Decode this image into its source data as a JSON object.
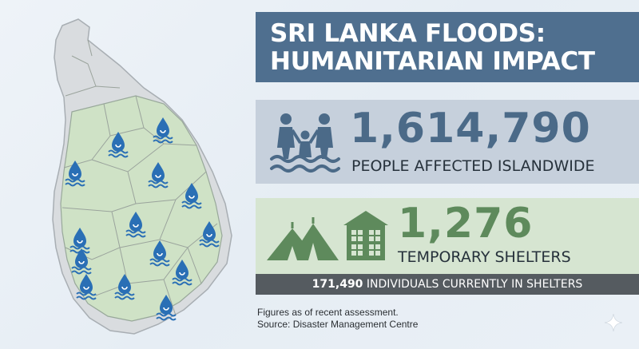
{
  "title": {
    "line1": "SRI LANKA FLOODS:",
    "line2": "HUMANITARIAN IMPACT"
  },
  "people": {
    "count": "1,614,790",
    "label": "PEOPLE AFFECTED ISLANDWIDE",
    "icon": "people-in-flood-water-icon"
  },
  "shelters": {
    "count": "1,276",
    "label": "TEMPORARY SHELTERS",
    "icons": [
      "tents-icon",
      "shelter-building-icon"
    ]
  },
  "individuals": {
    "count": "171,490",
    "label": "INDIVIDUALS CURRENTLY IN SHELTERS"
  },
  "footnote": {
    "line1": "Figures as of recent assessment.",
    "line2": "Source: Disaster Management Centre"
  },
  "map": {
    "icon": "flood-water-drop-icon",
    "affected_color": "#cfe2c6",
    "unaffected_color": "#d9dcdf",
    "marker_color": "#2a6fb5"
  },
  "colors": {
    "title_bg": "#4f6f8f",
    "people_panel": "#c6d0dc",
    "people_accent": "#4b6a88",
    "shelter_panel": "#d6e5d1",
    "shelter_accent": "#5e8a5c",
    "bar_bg": "#555b60"
  }
}
